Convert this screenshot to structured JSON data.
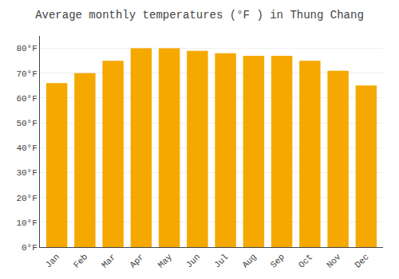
{
  "chart_data": {
    "type": "bar",
    "title": "Average monthly temperatures (°F ) in Thung Chang",
    "categories": [
      "Jan",
      "Feb",
      "Mar",
      "Apr",
      "May",
      "Jun",
      "Jul",
      "Aug",
      "Sep",
      "Oct",
      "Nov",
      "Dec"
    ],
    "values": [
      66,
      70,
      75,
      80,
      80,
      79,
      78,
      77,
      77,
      75,
      71,
      65
    ],
    "color": "#F5A800",
    "ylim": [
      0,
      85
    ],
    "yticks": [
      {
        "value": 0,
        "label": "0°F"
      },
      {
        "value": 10,
        "label": "10°F"
      },
      {
        "value": 20,
        "label": "20°F"
      },
      {
        "value": 30,
        "label": "30°F"
      },
      {
        "value": 40,
        "label": "40°F"
      },
      {
        "value": 50,
        "label": "50°F"
      },
      {
        "value": 60,
        "label": "60°F"
      },
      {
        "value": 70,
        "label": "70°F"
      },
      {
        "value": 80,
        "label": "80°F"
      }
    ],
    "grid": true
  }
}
